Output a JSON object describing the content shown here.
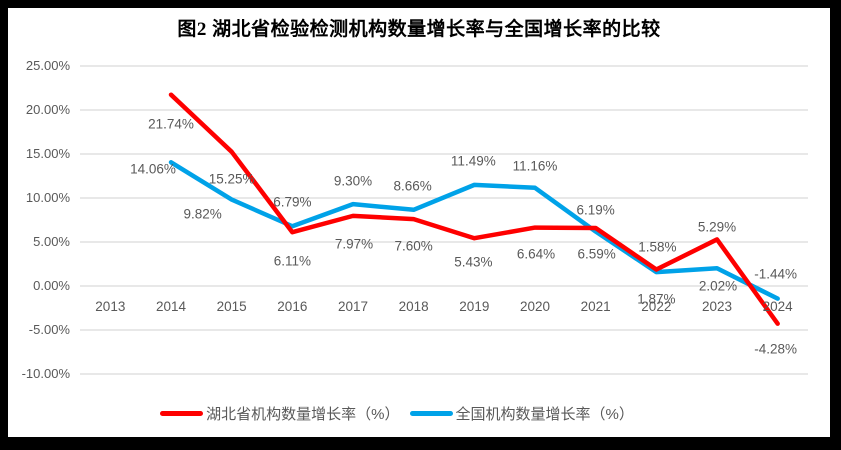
{
  "title": "图2 湖北省检验检测机构数量增长率与全国增长率的比较",
  "colors": {
    "hubei_line": "#fe0000",
    "national_line": "#00a2e8",
    "gridline": "#d9d9d9",
    "label_text": "#595959",
    "frame": "#000000",
    "background": "#ffffff"
  },
  "chart_data": {
    "type": "line",
    "title": "图2 湖北省检验检测机构数量增长率与全国增长率的比较",
    "categories": [
      "2013",
      "2014",
      "2015",
      "2016",
      "2017",
      "2018",
      "2019",
      "2020",
      "2021",
      "2022",
      "2023",
      "2024"
    ],
    "xlabel": "",
    "ylabel": "",
    "ylim": [
      -10,
      25
    ],
    "grid": "horizontal",
    "legend_position": "bottom",
    "y_ticks": [
      {
        "value": 25,
        "label": "25.00%"
      },
      {
        "value": 20,
        "label": "20.00%"
      },
      {
        "value": 15,
        "label": "15.00%"
      },
      {
        "value": 10,
        "label": "10.00%"
      },
      {
        "value": 5,
        "label": "5.00%"
      },
      {
        "value": 0,
        "label": "0.00%"
      },
      {
        "value": -5,
        "label": "-5.00%"
      },
      {
        "value": -10,
        "label": "-10.00%"
      }
    ],
    "series": [
      {
        "name": "湖北省机构数量增长率（%）",
        "color": "#fe0000",
        "values": [
          null,
          21.74,
          15.25,
          6.11,
          7.97,
          7.6,
          5.43,
          6.64,
          6.59,
          1.87,
          5.29,
          -4.28
        ],
        "labels": [
          null,
          "21.74%",
          "15.25%",
          "6.11%",
          "7.97%",
          "7.60%",
          "5.43%",
          "6.64%",
          "6.59%",
          "1.87%",
          "5.29%",
          "-4.28%"
        ],
        "label_offsets": [
          null,
          [
            0,
            29
          ],
          [
            0,
            27
          ],
          [
            0,
            29
          ],
          [
            1,
            28
          ],
          [
            0,
            27
          ],
          [
            -1,
            24
          ],
          [
            1,
            26
          ],
          [
            1,
            26
          ],
          [
            0,
            29
          ],
          [
            0,
            -12
          ],
          [
            -2,
            25
          ]
        ]
      },
      {
        "name": "全国机构数量增长率（%）",
        "color": "#00a2e8",
        "values": [
          null,
          14.06,
          9.82,
          6.79,
          9.3,
          8.66,
          11.49,
          11.16,
          6.19,
          1.58,
          2.02,
          -1.44
        ],
        "labels": [
          null,
          "14.06%",
          "9.82%",
          "6.79%",
          "9.30%",
          "8.66%",
          "11.49%",
          "11.16%",
          "6.19%",
          "1.58%",
          "2.02%",
          "-1.44%"
        ],
        "label_offsets": [
          null,
          [
            -18,
            7
          ],
          [
            -29,
            14
          ],
          [
            0,
            -24
          ],
          [
            0,
            -23
          ],
          [
            -1,
            -24
          ],
          [
            -1,
            -24
          ],
          [
            0,
            -22
          ],
          [
            0,
            -22
          ],
          [
            1,
            -25
          ],
          [
            1,
            18
          ],
          [
            -2,
            -25
          ]
        ]
      }
    ]
  }
}
